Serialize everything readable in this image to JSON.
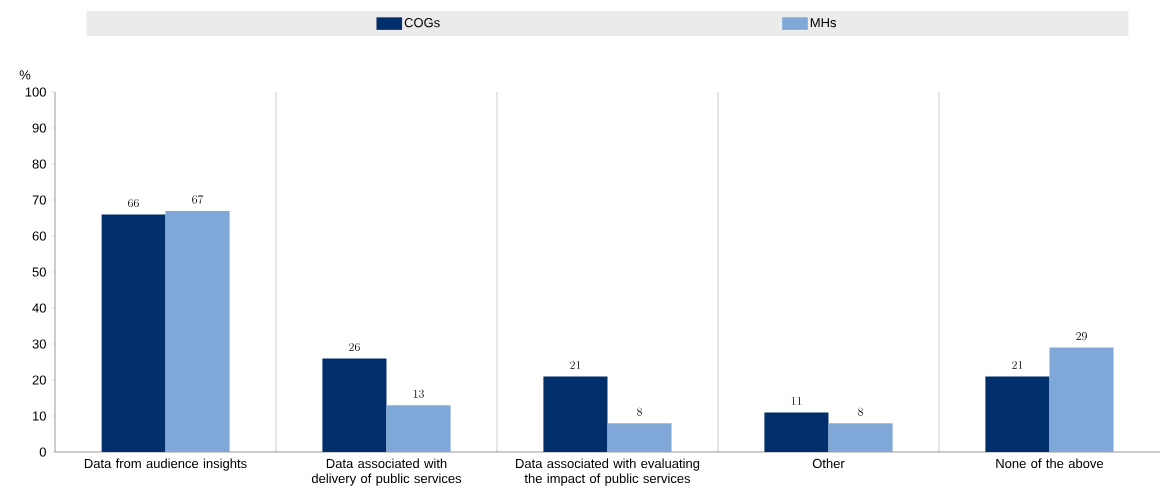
{
  "chart_data": {
    "type": "bar",
    "ylabel": "%",
    "categories": [
      "Data from audience insights",
      "Data associated with delivery of public services",
      "Data associated with evaluating the impact of public services",
      "Other",
      "None of the above"
    ],
    "series": [
      {
        "name": "COGs",
        "color": "#002f6c",
        "values": [
          66,
          26,
          21,
          11,
          21
        ]
      },
      {
        "name": "MHs",
        "color": "#7fa8d9",
        "values": [
          67,
          13,
          8,
          8,
          29
        ]
      }
    ],
    "ylim": [
      0,
      100
    ],
    "yticks": [
      0,
      10,
      20,
      30,
      40,
      50,
      60,
      70,
      80,
      90,
      100
    ],
    "grid": "x",
    "legend": "top",
    "data_labels": true
  }
}
